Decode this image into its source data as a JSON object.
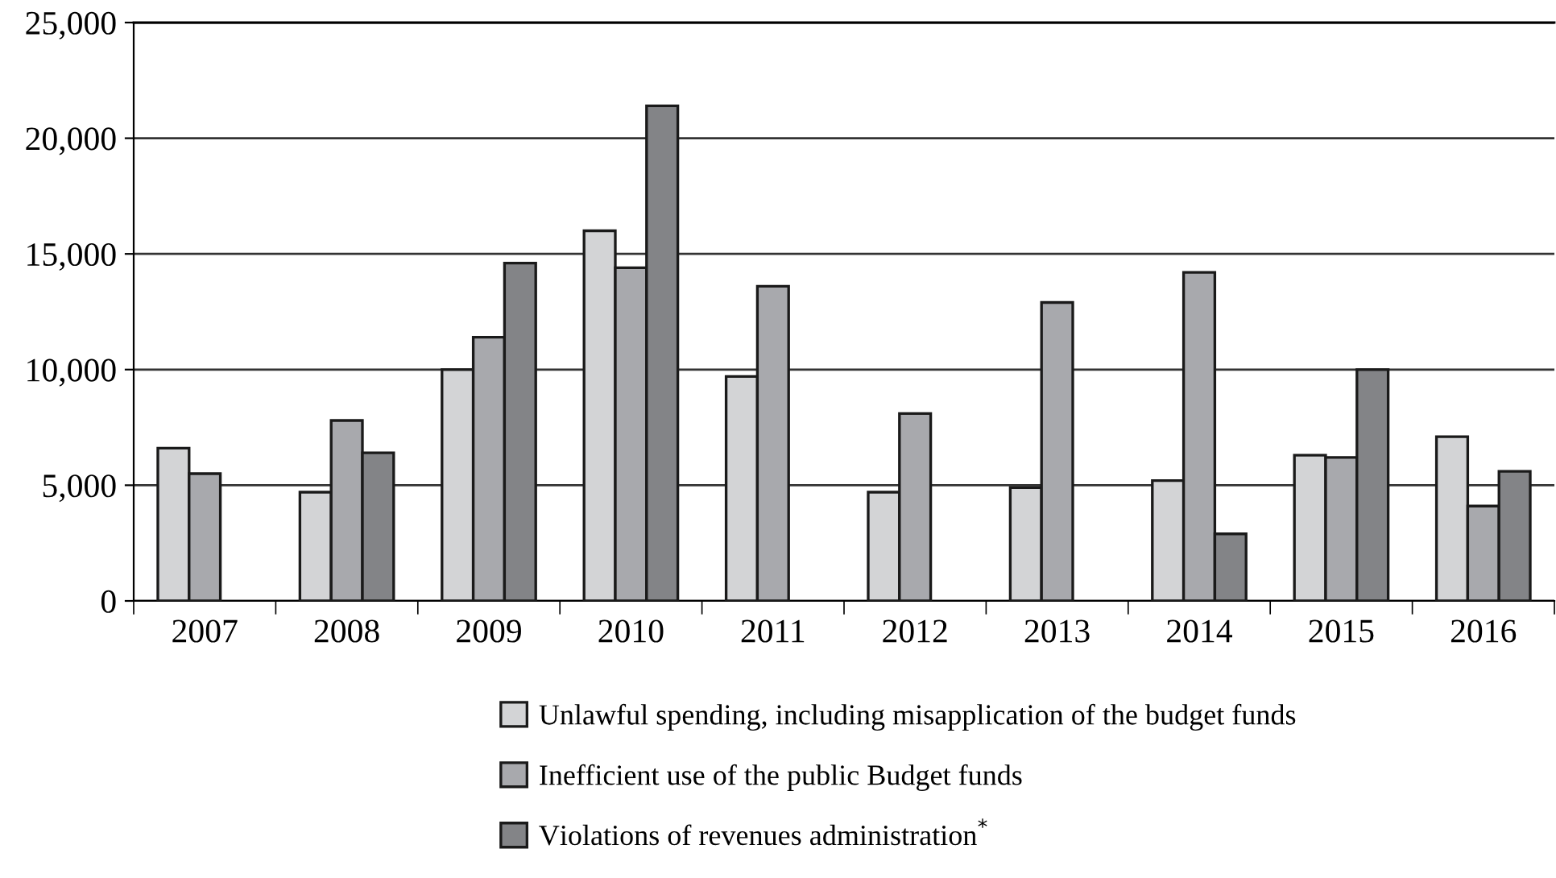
{
  "chart_data": {
    "type": "bar",
    "categories": [
      "2007",
      "2008",
      "2009",
      "2010",
      "2011",
      "2012",
      "2013",
      "2014",
      "2015",
      "2016"
    ],
    "series": [
      {
        "name": "Unlawful spending, including misapplication of the budget funds",
        "color": "#d3d4d6",
        "values": [
          6600,
          4700,
          10000,
          16000,
          9700,
          4700,
          4900,
          5200,
          6300,
          7100
        ]
      },
      {
        "name": "Inefficient use of the public Budget funds",
        "color": "#a8a9ad",
        "values": [
          5500,
          7800,
          11400,
          14400,
          13600,
          8100,
          12900,
          14200,
          6200,
          4100
        ]
      },
      {
        "name": "Violations of revenues administration$^{*}$",
        "color": "#838487",
        "values": [
          null,
          6400,
          14600,
          21400,
          null,
          null,
          null,
          2900,
          10000,
          5600
        ]
      }
    ],
    "ylim": [
      0,
      25000
    ],
    "yticks": [
      {
        "value": 0,
        "label": "0"
      },
      {
        "value": 5000,
        "label": "5,000"
      },
      {
        "value": 10000,
        "label": "10,000"
      },
      {
        "value": 15000,
        "label": "15,000"
      },
      {
        "value": 20000,
        "label": "20,000"
      },
      {
        "value": 25000,
        "label": "25,000"
      }
    ],
    "grid": "y",
    "legend": "bottom"
  }
}
